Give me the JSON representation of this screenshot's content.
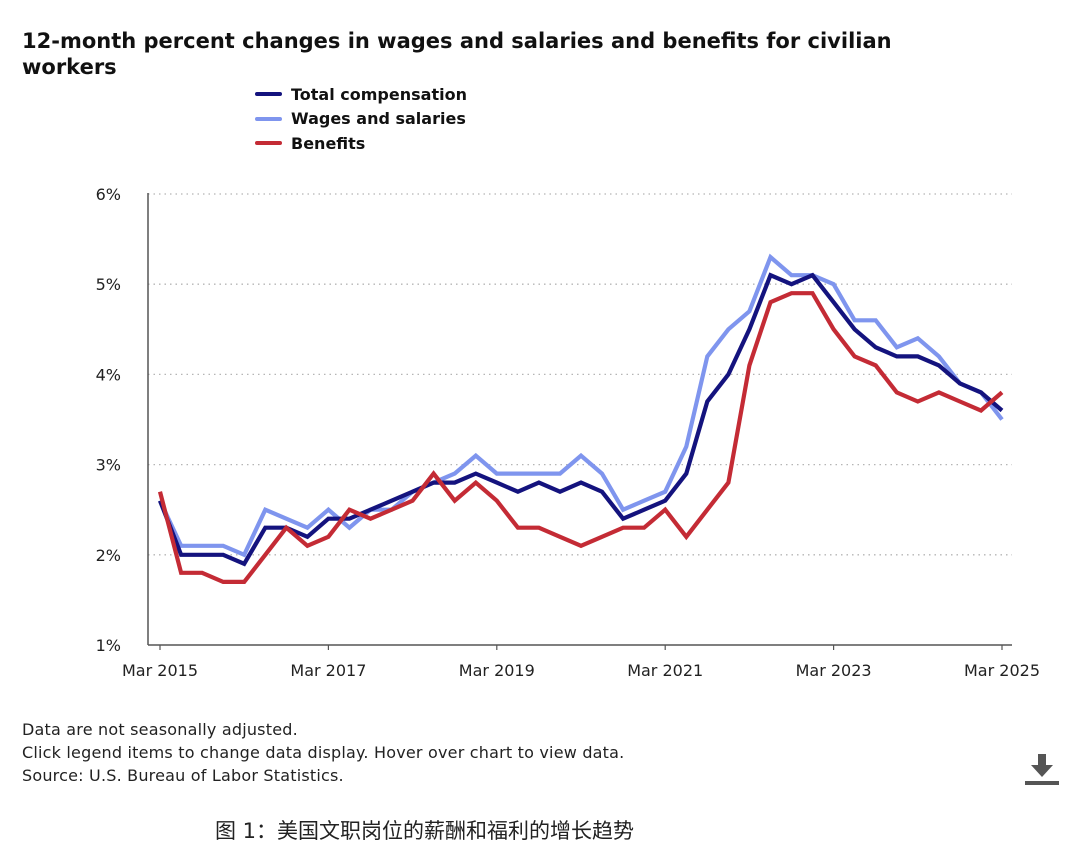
{
  "title": "12-month percent changes in wages and salaries and benefits for civilian workers",
  "legend": [
    {
      "label": "Total compensation",
      "color": "#14137e"
    },
    {
      "label": "Wages and salaries",
      "color": "#7f95ee"
    },
    {
      "label": "Benefits",
      "color": "#c42b35"
    }
  ],
  "notes": {
    "line1": "Data are not seasonally adjusted.",
    "line2": "Click legend items to change data display. Hover over chart to view data.",
    "line3": "Source: U.S. Bureau of Labor Statistics."
  },
  "download_icon": "download-icon",
  "caption": "图 1：美国文职岗位的薪酬和福利的增长趋势",
  "chart_data": {
    "type": "line",
    "ylim": [
      1,
      6
    ],
    "yticks": [
      1,
      2,
      3,
      4,
      5,
      6
    ],
    "ytick_labels": [
      "1%",
      "2%",
      "3%",
      "4%",
      "5%",
      "6%"
    ],
    "xtick_labels": [
      "Mar 2015",
      "Mar 2017",
      "Mar 2019",
      "Mar 2021",
      "Mar 2023",
      "Mar 2025"
    ],
    "grid": "horizontal dotted",
    "legend_position": "top",
    "x": [
      "Mar 2015",
      "Jun 2015",
      "Sep 2015",
      "Dec 2015",
      "Mar 2016",
      "Jun 2016",
      "Sep 2016",
      "Dec 2016",
      "Mar 2017",
      "Jun 2017",
      "Sep 2017",
      "Dec 2017",
      "Mar 2018",
      "Jun 2018",
      "Sep 2018",
      "Dec 2018",
      "Mar 2019",
      "Jun 2019",
      "Sep 2019",
      "Dec 2019",
      "Mar 2020",
      "Jun 2020",
      "Sep 2020",
      "Dec 2020",
      "Mar 2021",
      "Jun 2021",
      "Sep 2021",
      "Dec 2021",
      "Mar 2022",
      "Jun 2022",
      "Sep 2022",
      "Dec 2022",
      "Mar 2023",
      "Jun 2023",
      "Sep 2023",
      "Dec 2023",
      "Mar 2024",
      "Jun 2024",
      "Sep 2024",
      "Dec 2024",
      "Mar 2025"
    ],
    "series": [
      {
        "name": "Total compensation",
        "color": "#14137e",
        "values": [
          2.6,
          2.0,
          2.0,
          2.0,
          1.9,
          2.3,
          2.3,
          2.2,
          2.4,
          2.4,
          2.5,
          2.6,
          2.7,
          2.8,
          2.8,
          2.9,
          2.8,
          2.7,
          2.8,
          2.7,
          2.8,
          2.7,
          2.4,
          2.5,
          2.6,
          2.9,
          3.7,
          4.0,
          4.5,
          5.1,
          5.0,
          5.1,
          4.8,
          4.5,
          4.3,
          4.2,
          4.2,
          4.1,
          3.9,
          3.8,
          3.6
        ]
      },
      {
        "name": "Wages and salaries",
        "color": "#7f95ee",
        "values": [
          2.6,
          2.1,
          2.1,
          2.1,
          2.0,
          2.5,
          2.4,
          2.3,
          2.5,
          2.3,
          2.5,
          2.5,
          2.7,
          2.8,
          2.9,
          3.1,
          2.9,
          2.9,
          2.9,
          2.9,
          3.1,
          2.9,
          2.5,
          2.6,
          2.7,
          3.2,
          4.2,
          4.5,
          4.7,
          5.3,
          5.1,
          5.1,
          5.0,
          4.6,
          4.6,
          4.3,
          4.4,
          4.2,
          3.9,
          3.8,
          3.5
        ]
      },
      {
        "name": "Benefits",
        "color": "#c42b35",
        "values": [
          2.7,
          1.8,
          1.8,
          1.7,
          1.7,
          2.0,
          2.3,
          2.1,
          2.2,
          2.5,
          2.4,
          2.5,
          2.6,
          2.9,
          2.6,
          2.8,
          2.6,
          2.3,
          2.3,
          2.2,
          2.1,
          2.2,
          2.3,
          2.3,
          2.5,
          2.2,
          2.5,
          2.8,
          4.1,
          4.8,
          4.9,
          4.9,
          4.5,
          4.2,
          4.1,
          3.8,
          3.7,
          3.8,
          3.7,
          3.6,
          3.8
        ]
      }
    ]
  }
}
